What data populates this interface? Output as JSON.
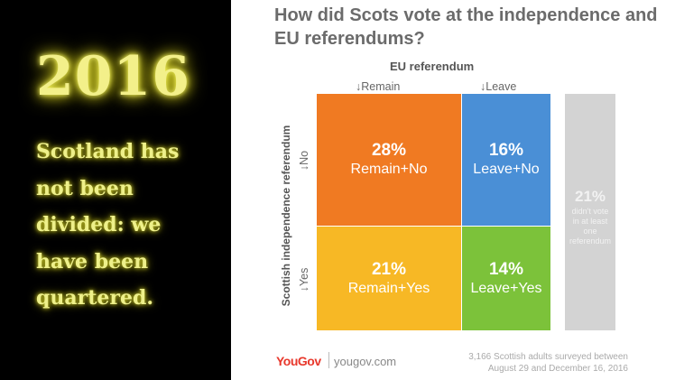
{
  "left": {
    "year": "2016",
    "quote_lines": [
      "Scotland has",
      "not been",
      "divided: we",
      "have been",
      "quartered."
    ]
  },
  "chart_data": {
    "type": "table",
    "title": "How did Scots vote at the independence and EU referendums?",
    "column_axis_label": "EU referendum",
    "row_axis_label": "Scottish independence referendum",
    "columns": [
      "↓Remain",
      "↓Leave"
    ],
    "rows": [
      "↓No",
      "↓Yes"
    ],
    "cells": [
      {
        "row": "No",
        "column": "Remain",
        "value": 28,
        "pct_label": "28%",
        "label": "Remain+No",
        "color": "#f07a22"
      },
      {
        "row": "No",
        "column": "Leave",
        "value": 16,
        "pct_label": "16%",
        "label": "Leave+No",
        "color": "#4a8fd6"
      },
      {
        "row": "Yes",
        "column": "Remain",
        "value": 21,
        "pct_label": "21%",
        "label": "Remain+Yes",
        "color": "#f7b825"
      },
      {
        "row": "Yes",
        "column": "Leave",
        "value": 14,
        "pct_label": "14%",
        "label": "Leave+Yes",
        "color": "#7cc23a"
      }
    ],
    "other": {
      "value": 21,
      "pct_label": "21%",
      "label_lines": [
        "didn't vote",
        "in at least",
        "one",
        "referendum"
      ],
      "color": "#d3d3d3"
    }
  },
  "footer": {
    "logo": "YouGov",
    "site": "yougov.com",
    "note_lines": [
      "3,166 Scottish adults surveyed between",
      "August 29 and December 16, 2016"
    ]
  }
}
